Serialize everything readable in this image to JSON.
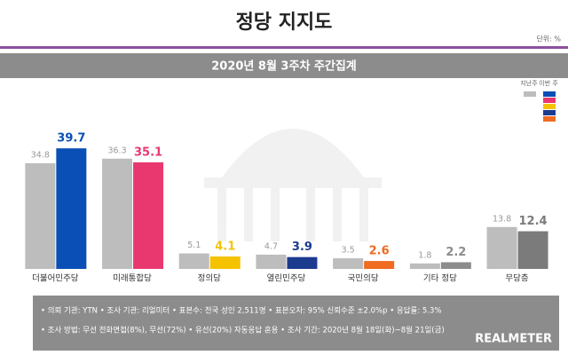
{
  "chart_data": {
    "type": "bar",
    "title": "정당 지지도",
    "unit": "단위: %",
    "subtitle": "2020년 8월 3주차 주간집계",
    "categories": [
      "더불어민주당",
      "미래통합당",
      "정의당",
      "열린민주당",
      "국민의당",
      "기타 정당",
      "무당층"
    ],
    "series": [
      {
        "name": "지난주",
        "color": "#bdbdbd",
        "values": [
          34.8,
          36.3,
          5.1,
          4.7,
          3.5,
          1.8,
          13.8
        ]
      },
      {
        "name": "이번 주",
        "colors": [
          "#0a4fb5",
          "#e8386f",
          "#f5c200",
          "#1b3b8f",
          "#ef6c21",
          "#8c8c8c",
          "#7b7b7b"
        ],
        "values": [
          39.7,
          35.1,
          4.1,
          3.9,
          2.6,
          2.2,
          12.4
        ]
      }
    ],
    "ylim": [
      0,
      45
    ],
    "notes": [
      "• 의뢰 기관: YTN  • 조사 기관: 리얼미터  • 표본수: 전국 성인 2,511명  • 표본오차: 95% 신뢰수준 ±2.0%p  • 응답률: 5.3%",
      "• 조사 방법: 무선 전화면접(8%), 무선(72%) • 유선(20%) 자동응답 혼용  • 조사 기간: 2020년 8월 18일(화)~8월 21일(금)"
    ],
    "logo": "REALMETER"
  }
}
